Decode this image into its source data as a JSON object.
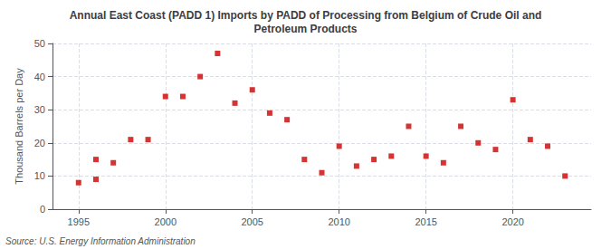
{
  "chart_data": {
    "type": "scatter",
    "title": "Annual East Coast (PADD 1) Imports by PADD of Processing from Belgium of Crude Oil and\nPetroleum Products",
    "ylabel": "Thousand Barrels per Day",
    "annotation": "Source: U.S. Energy Information Administration",
    "color": "#cc0000",
    "marker": "square",
    "grid": true,
    "xlim": [
      1993.5,
      2024.5
    ],
    "ylim": [
      0,
      50
    ],
    "xticks": [
      1995,
      2000,
      2005,
      2010,
      2015,
      2020
    ],
    "yticks": [
      0,
      10,
      20,
      30,
      40,
      50
    ],
    "x": [
      1995,
      1996,
      1996,
      1997,
      1998,
      1999,
      2000,
      2001,
      2002,
      2003,
      2004,
      2005,
      2006,
      2007,
      2008,
      2009,
      2010,
      2011,
      2012,
      2013,
      2014,
      2015,
      2016,
      2017,
      2018,
      2019,
      2020,
      2021,
      2022,
      2023
    ],
    "values": [
      8,
      9,
      15,
      14,
      21,
      21,
      34,
      34,
      40,
      47,
      32,
      36,
      29,
      27,
      15,
      11,
      19,
      13,
      15,
      16,
      25,
      16,
      14,
      25,
      20,
      18,
      33,
      21,
      19,
      10
    ]
  }
}
